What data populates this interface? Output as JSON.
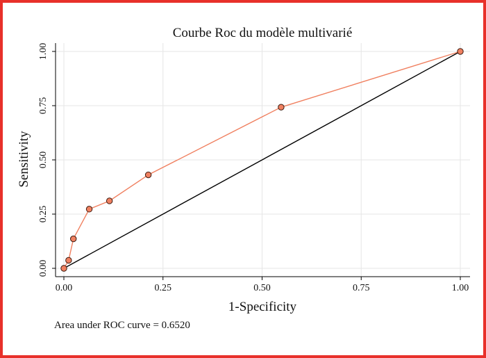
{
  "chart_data": {
    "type": "line",
    "title": "Courbe Roc du modèle multivarié",
    "xlabel": "1-Specificity",
    "ylabel": "Sensitivity",
    "xlim": [
      0,
      1
    ],
    "ylim": [
      0,
      1
    ],
    "x_ticks": [
      0,
      0.25,
      0.5,
      0.75,
      1
    ],
    "x_tick_labels": [
      "0.00",
      "0.25",
      "0.50",
      "0.75",
      "1.00"
    ],
    "y_ticks": [
      0,
      0.25,
      0.5,
      0.75,
      1
    ],
    "y_tick_labels": [
      "0.00",
      "0.25",
      "0.50",
      "0.75",
      "1.00"
    ],
    "grid": true,
    "series": [
      {
        "x": [
          0.0,
          0.012,
          0.024,
          0.064,
          0.115,
          0.213,
          0.548,
          1.0
        ],
        "y": [
          0.0,
          0.037,
          0.136,
          0.273,
          0.311,
          0.431,
          0.743,
          1.0
        ],
        "color": "#f08060",
        "marker_fill": "#f08060"
      }
    ],
    "reference_line": {
      "x": [
        0,
        1
      ],
      "y": [
        0,
        1
      ],
      "color": "#000000"
    },
    "annotation": "Area under ROC curve = 0.6520"
  },
  "colors": {
    "border": "#e8302a",
    "curve": "#f08060",
    "grid": "#e6e6e6"
  }
}
